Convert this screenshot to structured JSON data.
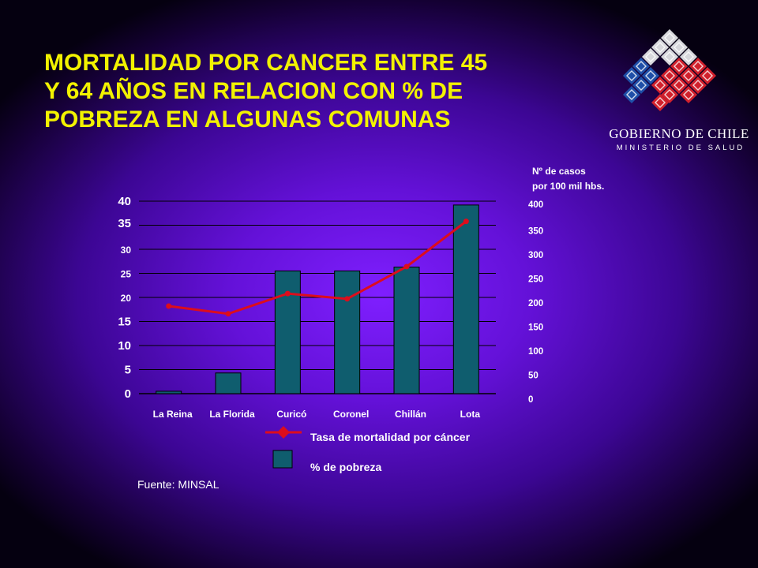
{
  "slide": {
    "title_lines": [
      "MORTALIDAD POR CANCER ENTRE 45",
      "Y 64 AÑOS EN RELACION CON % DE",
      "POBREZA EN ALGUNAS COMUNAS"
    ],
    "source": "Fuente: MINSAL"
  },
  "logo": {
    "org": "GOBIERNO DE CHILE",
    "dept": "MINISTERIO DE SALUD"
  },
  "colors": {
    "background": "#6411d8",
    "title": "#f2f200",
    "bar": "#0f5d6e",
    "line": "#dd0d1c",
    "text": "#ffffff"
  },
  "chart_data": {
    "type": "bar",
    "categories": [
      "La Reina",
      "La Florida",
      "Curicó",
      "Coronel",
      "Chillán",
      "Lota"
    ],
    "series": [
      {
        "name": "% de pobreza",
        "type": "bar",
        "axis": "left",
        "values": [
          0.5,
          4.3,
          25.5,
          25.5,
          26.3,
          39.2
        ]
      },
      {
        "name": "Tasa de mortalidad por cáncer",
        "type": "line",
        "axis": "right",
        "values": [
          182,
          166,
          208,
          197,
          264,
          358
        ]
      }
    ],
    "left_axis": {
      "ticks": [
        0,
        5,
        10,
        15,
        20,
        25,
        30,
        35,
        40
      ],
      "ylim": [
        0,
        40
      ]
    },
    "right_axis": {
      "label_lines": [
        "Nº de casos",
        "por 100 mil hbs."
      ],
      "ticks": [
        0,
        50,
        100,
        150,
        200,
        250,
        300,
        350,
        400
      ],
      "ylim": [
        0,
        400
      ]
    },
    "grid": true,
    "legend_position": "bottom-center"
  }
}
